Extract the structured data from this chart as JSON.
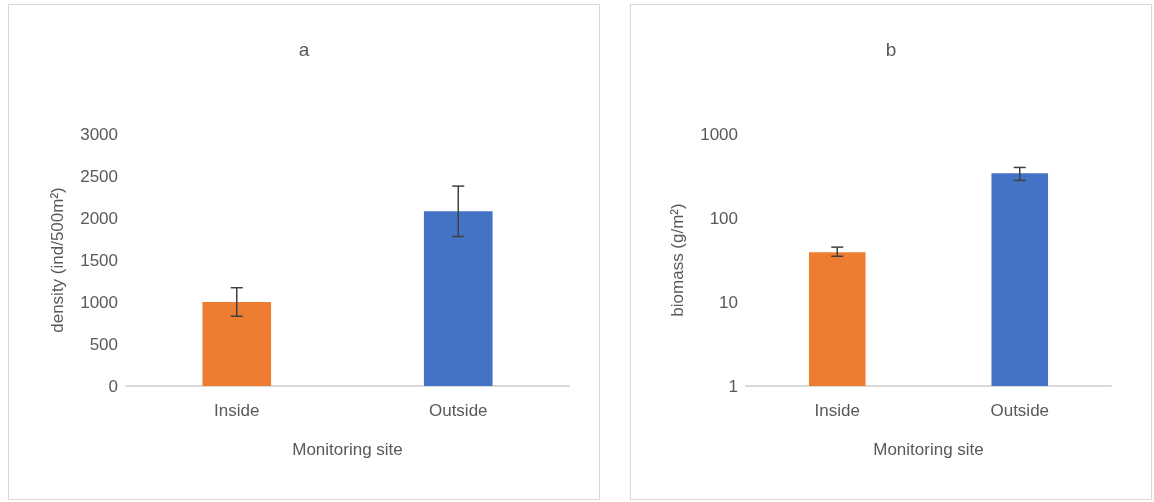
{
  "chart_data": [
    {
      "type": "bar",
      "title": "a",
      "xlabel": "Monitoring site",
      "ylabel": "density (ind/500m²)",
      "categories": [
        "Inside",
        "Outside"
      ],
      "values": [
        1000,
        2080
      ],
      "colors": [
        "#ed7d31",
        "#4472c4"
      ],
      "errors": [
        170,
        300
      ],
      "ylim": [
        0,
        3000
      ],
      "yticks": [
        0,
        500,
        1000,
        1500,
        2000,
        2500,
        3000
      ],
      "grid": false
    },
    {
      "type": "bar",
      "title": "b",
      "xlabel": "Monitoring site",
      "ylabel": "biomass (g/m²)",
      "categories": [
        "Inside",
        "Outside"
      ],
      "values": [
        39,
        340
      ],
      "colors": [
        "#ed7d31",
        "#4472c4"
      ],
      "errors": [
        [
          35,
          45
        ],
        [
          280,
          400
        ]
      ],
      "ylim": [
        1,
        1000
      ],
      "yticks": [
        1,
        10,
        100,
        1000
      ],
      "log": "y",
      "grid": false
    }
  ]
}
